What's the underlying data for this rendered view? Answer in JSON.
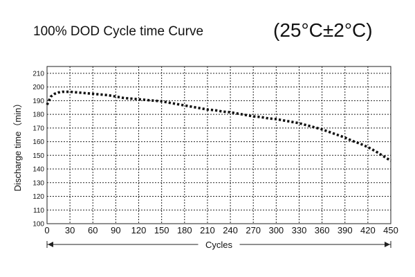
{
  "chart_data": {
    "type": "line",
    "title": "100% DOD Cycle time Curve",
    "condition": "(25°C±2°C)",
    "xlabel": "Cycles",
    "ylabel": "Discharge time（min）",
    "xlim": [
      0,
      450
    ],
    "ylim": [
      100,
      215
    ],
    "xticks": [
      "0",
      "30",
      "60",
      "90",
      "120",
      "150",
      "180",
      "210",
      "240",
      "270",
      "300",
      "330",
      "360",
      "390",
      "420",
      "450"
    ],
    "yticks": [
      "100",
      "110",
      "120",
      "130",
      "140",
      "150",
      "160",
      "170",
      "180",
      "190",
      "200",
      "210"
    ],
    "grid": true,
    "line_style": "dotted",
    "series_color": "#111111",
    "x": [
      0,
      5,
      10,
      15,
      20,
      30,
      40,
      50,
      60,
      70,
      80,
      90,
      100,
      110,
      120,
      130,
      140,
      150,
      160,
      170,
      180,
      190,
      200,
      210,
      220,
      230,
      240,
      250,
      260,
      270,
      280,
      290,
      300,
      310,
      320,
      330,
      340,
      350,
      360,
      370,
      380,
      390,
      400,
      410,
      420,
      430,
      440,
      450
    ],
    "y": [
      187,
      193,
      195,
      196,
      196.5,
      196.5,
      196,
      195.5,
      195,
      194.5,
      194,
      193,
      192,
      191.5,
      191,
      190.5,
      190,
      189.5,
      188.5,
      187.5,
      186.5,
      185.5,
      184.5,
      183.5,
      183,
      182,
      181.5,
      180.5,
      179.5,
      178.5,
      178,
      177,
      176.5,
      175.5,
      174.5,
      173.5,
      172,
      170.5,
      169,
      167,
      165,
      163,
      160.5,
      158.5,
      156,
      153,
      149.5,
      146
    ]
  }
}
